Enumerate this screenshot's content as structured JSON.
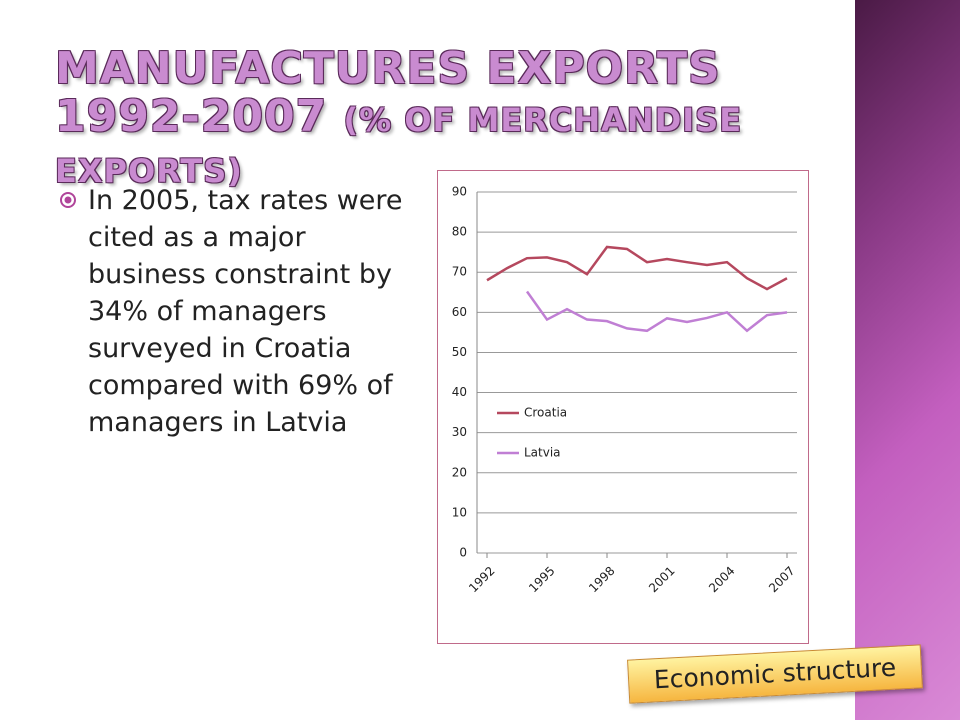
{
  "slide": {
    "title": "MANUFACTURES EXPORTS 1992-2007",
    "title_suffix": "(% OF MERCHANDISE EXPORTS)",
    "bullet": "In 2005, tax rates were cited as a major business constraint by 34% of managers surveyed in Croatia compared with 69% of managers in Latvia",
    "tag": "Economic structure"
  },
  "chart_data": {
    "type": "line",
    "x": [
      1992,
      1993,
      1994,
      1995,
      1996,
      1997,
      1998,
      1999,
      2000,
      2001,
      2002,
      2003,
      2004,
      2005,
      2006,
      2007
    ],
    "series": [
      {
        "name": "Croatia",
        "color": "#b5485e",
        "values": [
          68,
          71,
          73.5,
          73.7,
          72.5,
          69.5,
          76.3,
          75.8,
          72.5,
          73.3,
          72.5,
          71.8,
          72.5,
          68.5,
          65.8,
          68.5
        ]
      },
      {
        "name": "Latvia",
        "color": "#c07fd4",
        "values": [
          null,
          null,
          65.2,
          58.2,
          60.8,
          58.2,
          57.8,
          56,
          55.4,
          58.5,
          57.6,
          58.6,
          60,
          55.4,
          59.3,
          60
        ]
      }
    ],
    "xlim": [
      1991.5,
      2007.5
    ],
    "xticks": [
      1992,
      1995,
      1998,
      2001,
      2004,
      2007
    ],
    "ylim": [
      0,
      90
    ],
    "yticks": [
      0,
      10,
      20,
      30,
      40,
      50,
      60,
      70,
      80,
      90
    ],
    "grid": true,
    "legend": "left"
  }
}
